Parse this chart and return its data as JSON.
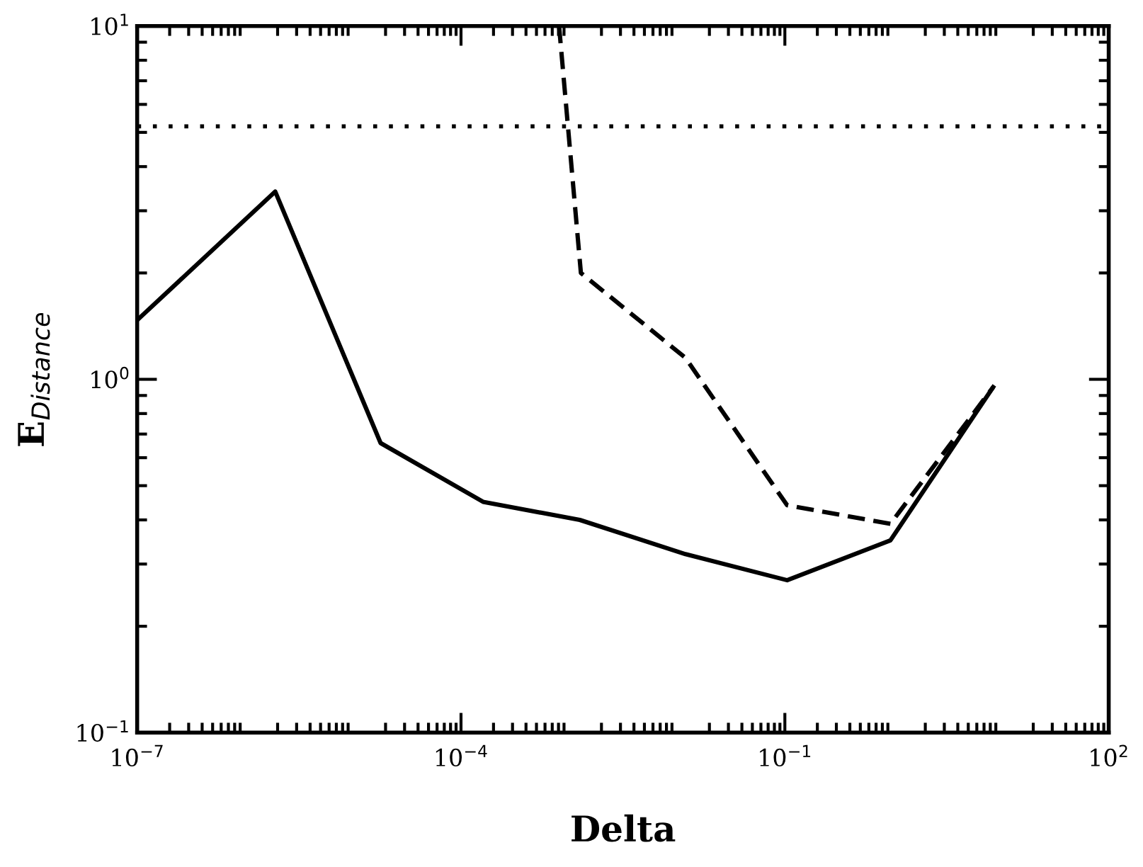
{
  "chart_data": {
    "type": "line",
    "xlabel": "Delta",
    "ylabel": "E$_{Distance}$",
    "log": "xy",
    "series": [
      {
        "color": "#000000",
        "line_style": "solid",
        "x": [
          1e-07,
          1.9e-06,
          1.8e-05,
          0.00016,
          0.00126,
          0.012,
          0.105,
          0.95,
          8.5
        ],
        "values": [
          1.47,
          3.4,
          0.66,
          0.45,
          0.4,
          0.32,
          0.27,
          0.35,
          0.95
        ]
      },
      {
        "color": "#000000",
        "line_style": "dashed",
        "x": [
          0.00081,
          0.00129,
          0.012,
          0.105,
          0.95,
          8.5
        ],
        "values": [
          10,
          2.0,
          1.15,
          0.44,
          0.39,
          0.95
        ]
      }
    ],
    "ref_lines": [
      {
        "axis": "y",
        "value": 5.2,
        "line_style": "dotted",
        "color": "#000000"
      }
    ],
    "xlim": [
      1e-07,
      100
    ],
    "ylim": [
      0.1,
      10
    ],
    "xticks": [
      {
        "value": 1e-07,
        "label": "10$^{−7}$"
      },
      {
        "value": 0.0001,
        "label": "10$^{−4}$"
      },
      {
        "value": 0.1,
        "label": "10$^{−1}$"
      },
      {
        "value": 100,
        "label": "10$^{2}$"
      }
    ],
    "yticks": [
      {
        "value": 0.1,
        "label": "10$^{−1}$"
      },
      {
        "value": 1,
        "label": "10$^{0}$"
      },
      {
        "value": 10,
        "label": "10$^{1}$"
      }
    ],
    "grid": false,
    "legend": false,
    "marker": "none"
  }
}
